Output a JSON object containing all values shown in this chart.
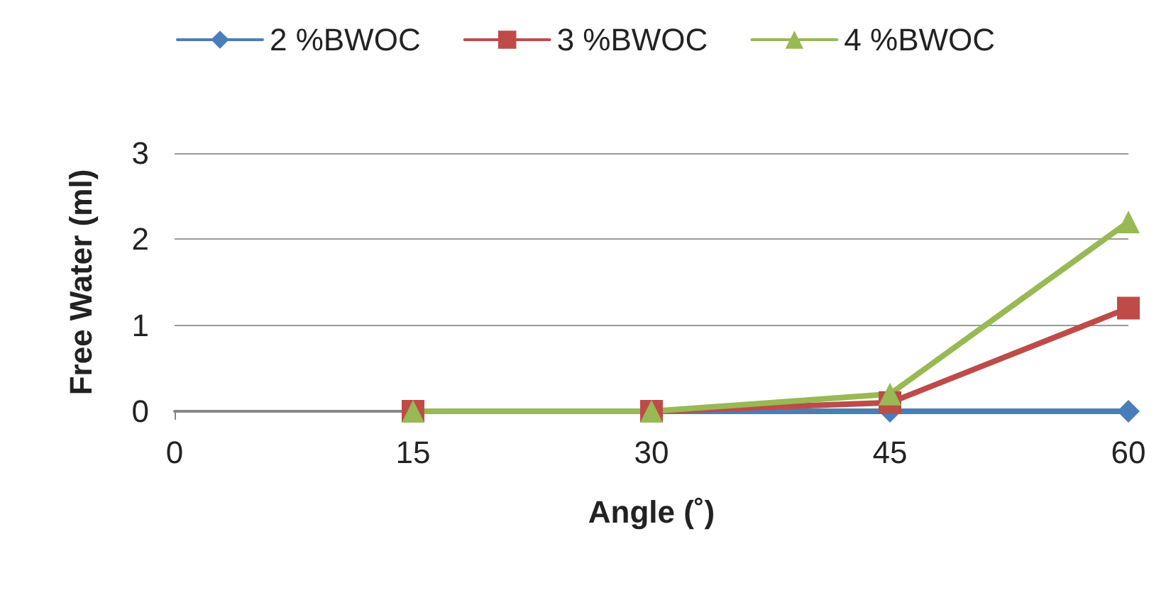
{
  "chart_data": {
    "type": "line",
    "xlabel": "Angle (˚)",
    "ylabel": "Free Water (ml)",
    "x": [
      15,
      30,
      45,
      60
    ],
    "series": [
      {
        "name": "2 %BWOC",
        "color": "#4a7ebb",
        "marker": "diamond",
        "values": [
          0,
          0,
          0,
          0
        ]
      },
      {
        "name": "3 %BWOC",
        "color": "#be4b48",
        "marker": "square",
        "values": [
          0,
          0,
          0.1,
          1.2
        ]
      },
      {
        "name": "4 %BWOC",
        "color": "#98b954",
        "marker": "triangle",
        "values": [
          0,
          0,
          0.2,
          2.2
        ]
      }
    ],
    "xlim": [
      0,
      60
    ],
    "xticks": [
      0,
      15,
      30,
      45,
      60
    ],
    "ylim": [
      0,
      3
    ],
    "yticks": [
      0,
      1,
      2,
      3
    ],
    "grid": "y",
    "legend": "top",
    "line_style": "solid"
  }
}
